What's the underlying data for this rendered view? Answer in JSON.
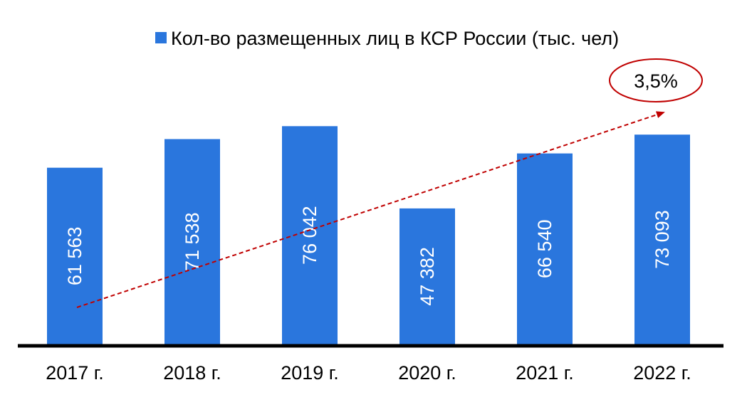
{
  "chart_data": {
    "type": "bar",
    "categories": [
      "2017 г.",
      "2018 г.",
      "2019 г.",
      "2020 г.",
      "2021 г.",
      "2022 г."
    ],
    "series": [
      {
        "name": "Кол-во размещенных лиц в КСР России (тыс. чел)",
        "values": [
          61563,
          71538,
          76042,
          47382,
          66540,
          73093
        ],
        "labels": [
          "61 563",
          "71 538",
          "76 042",
          "47 382",
          "66 540",
          "73 093"
        ],
        "color": "#2a76dd"
      }
    ],
    "legend": {
      "position": "top"
    },
    "grid": false,
    "ylim": [
      0,
      120000
    ],
    "trend": {
      "label": "3,5%",
      "color": "#c00000"
    }
  }
}
